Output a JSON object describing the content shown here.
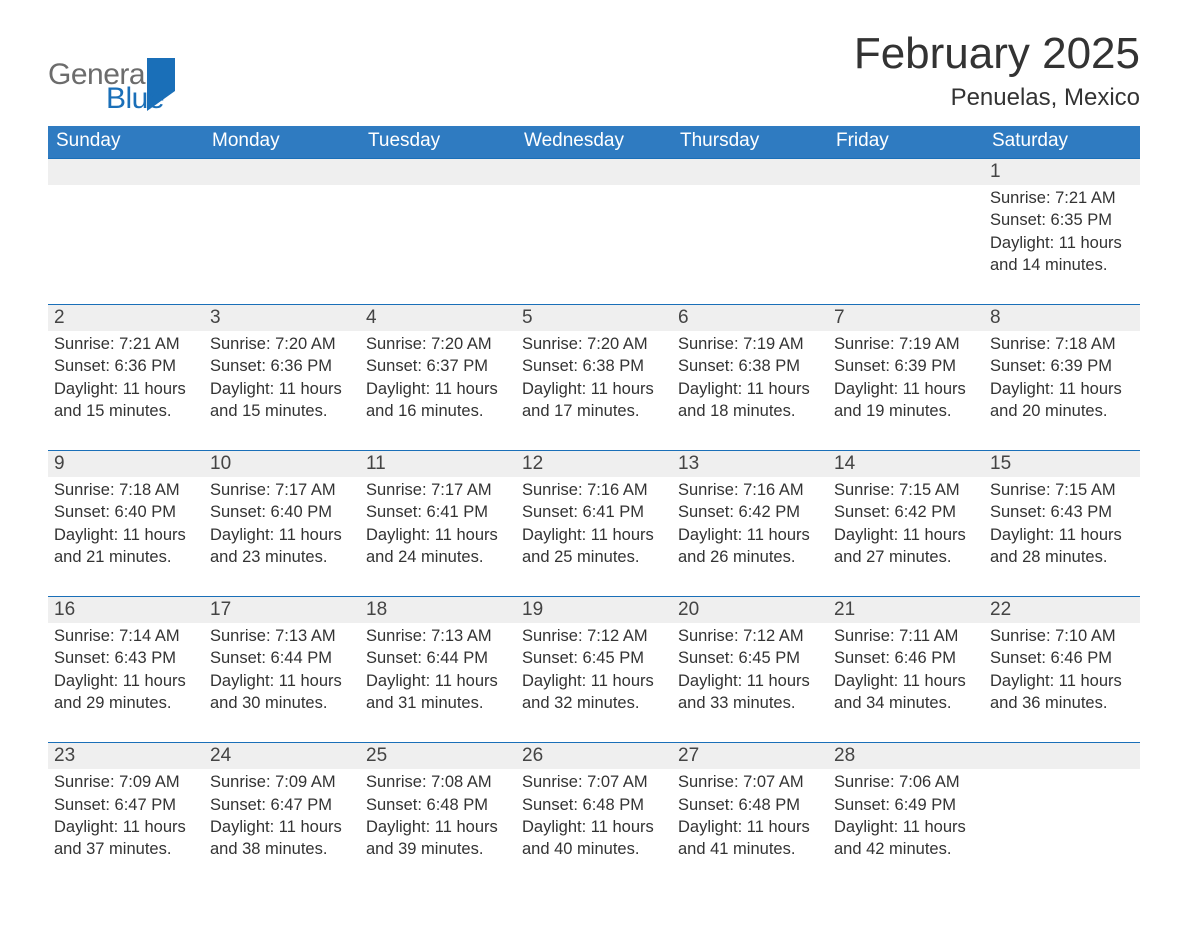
{
  "colors": {
    "header_blue": "#2f7bc1",
    "accent_blue": "#1a6fb8",
    "light_gray_row": "#efefef",
    "background": "#ffffff",
    "text": "#333333",
    "logo_gray": "#6c6c6c",
    "logo_blue": "#1a6fb8"
  },
  "typography": {
    "month_title_fontsize": 44,
    "location_fontsize": 24,
    "day_header_fontsize": 19,
    "daynum_fontsize": 19,
    "detail_fontsize": 16.5,
    "font_family": "Segoe UI"
  },
  "logo": {
    "line1": "General",
    "line2": "Blue",
    "icon": "triangle-flag"
  },
  "title": "February 2025",
  "location": "Penuelas, Mexico",
  "day_headers": [
    "Sunday",
    "Monday",
    "Tuesday",
    "Wednesday",
    "Thursday",
    "Friday",
    "Saturday"
  ],
  "calendar": {
    "type": "table",
    "columns": 7,
    "rows_per_week": 2,
    "start_day_index": 6,
    "days_in_month": 28
  },
  "labels": {
    "sunrise_prefix": "Sunrise: ",
    "sunset_prefix": "Sunset: ",
    "daylight_prefix": "Daylight: ",
    "daylight_join": " and ",
    "daylight_hours_word": " hours",
    "daylight_minutes_word": " minutes."
  },
  "days": {
    "1": {
      "sunrise": "7:21 AM",
      "sunset": "6:35 PM",
      "daylight_h": 11,
      "daylight_m": 14
    },
    "2": {
      "sunrise": "7:21 AM",
      "sunset": "6:36 PM",
      "daylight_h": 11,
      "daylight_m": 15
    },
    "3": {
      "sunrise": "7:20 AM",
      "sunset": "6:36 PM",
      "daylight_h": 11,
      "daylight_m": 15
    },
    "4": {
      "sunrise": "7:20 AM",
      "sunset": "6:37 PM",
      "daylight_h": 11,
      "daylight_m": 16
    },
    "5": {
      "sunrise": "7:20 AM",
      "sunset": "6:38 PM",
      "daylight_h": 11,
      "daylight_m": 17
    },
    "6": {
      "sunrise": "7:19 AM",
      "sunset": "6:38 PM",
      "daylight_h": 11,
      "daylight_m": 18
    },
    "7": {
      "sunrise": "7:19 AM",
      "sunset": "6:39 PM",
      "daylight_h": 11,
      "daylight_m": 19
    },
    "8": {
      "sunrise": "7:18 AM",
      "sunset": "6:39 PM",
      "daylight_h": 11,
      "daylight_m": 20
    },
    "9": {
      "sunrise": "7:18 AM",
      "sunset": "6:40 PM",
      "daylight_h": 11,
      "daylight_m": 21
    },
    "10": {
      "sunrise": "7:17 AM",
      "sunset": "6:40 PM",
      "daylight_h": 11,
      "daylight_m": 23
    },
    "11": {
      "sunrise": "7:17 AM",
      "sunset": "6:41 PM",
      "daylight_h": 11,
      "daylight_m": 24
    },
    "12": {
      "sunrise": "7:16 AM",
      "sunset": "6:41 PM",
      "daylight_h": 11,
      "daylight_m": 25
    },
    "13": {
      "sunrise": "7:16 AM",
      "sunset": "6:42 PM",
      "daylight_h": 11,
      "daylight_m": 26
    },
    "14": {
      "sunrise": "7:15 AM",
      "sunset": "6:42 PM",
      "daylight_h": 11,
      "daylight_m": 27
    },
    "15": {
      "sunrise": "7:15 AM",
      "sunset": "6:43 PM",
      "daylight_h": 11,
      "daylight_m": 28
    },
    "16": {
      "sunrise": "7:14 AM",
      "sunset": "6:43 PM",
      "daylight_h": 11,
      "daylight_m": 29
    },
    "17": {
      "sunrise": "7:13 AM",
      "sunset": "6:44 PM",
      "daylight_h": 11,
      "daylight_m": 30
    },
    "18": {
      "sunrise": "7:13 AM",
      "sunset": "6:44 PM",
      "daylight_h": 11,
      "daylight_m": 31
    },
    "19": {
      "sunrise": "7:12 AM",
      "sunset": "6:45 PM",
      "daylight_h": 11,
      "daylight_m": 32
    },
    "20": {
      "sunrise": "7:12 AM",
      "sunset": "6:45 PM",
      "daylight_h": 11,
      "daylight_m": 33
    },
    "21": {
      "sunrise": "7:11 AM",
      "sunset": "6:46 PM",
      "daylight_h": 11,
      "daylight_m": 34
    },
    "22": {
      "sunrise": "7:10 AM",
      "sunset": "6:46 PM",
      "daylight_h": 11,
      "daylight_m": 36
    },
    "23": {
      "sunrise": "7:09 AM",
      "sunset": "6:47 PM",
      "daylight_h": 11,
      "daylight_m": 37
    },
    "24": {
      "sunrise": "7:09 AM",
      "sunset": "6:47 PM",
      "daylight_h": 11,
      "daylight_m": 38
    },
    "25": {
      "sunrise": "7:08 AM",
      "sunset": "6:48 PM",
      "daylight_h": 11,
      "daylight_m": 39
    },
    "26": {
      "sunrise": "7:07 AM",
      "sunset": "6:48 PM",
      "daylight_h": 11,
      "daylight_m": 40
    },
    "27": {
      "sunrise": "7:07 AM",
      "sunset": "6:48 PM",
      "daylight_h": 11,
      "daylight_m": 41
    },
    "28": {
      "sunrise": "7:06 AM",
      "sunset": "6:49 PM",
      "daylight_h": 11,
      "daylight_m": 42
    }
  }
}
